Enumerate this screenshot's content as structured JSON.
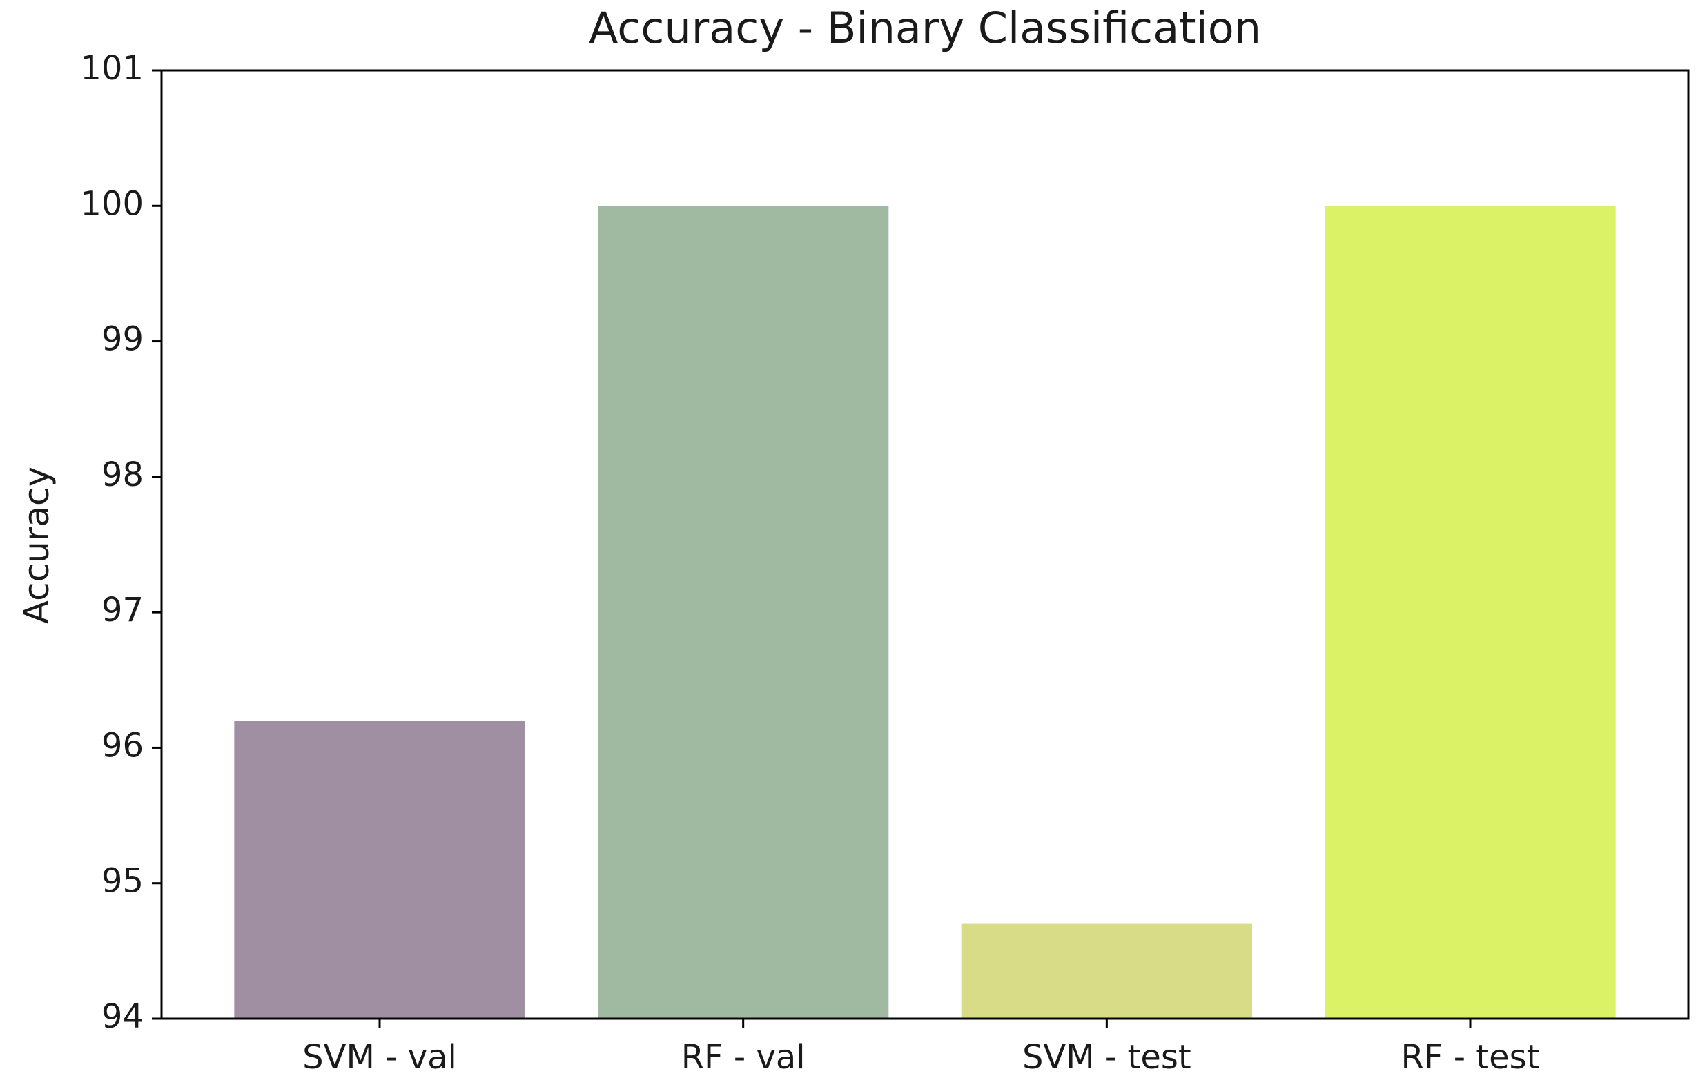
{
  "chart_data": {
    "type": "bar",
    "title": "Accuracy - Binary Classification",
    "xlabel": "",
    "ylabel": "Accuracy",
    "categories": [
      "SVM - val",
      "RF - val",
      "SVM - test",
      "RF - test"
    ],
    "values": [
      96.2,
      100,
      94.7,
      100
    ],
    "colors": [
      "#a08fa2",
      "#a0baa2",
      "#d8dc87",
      "#dcf266"
    ],
    "ylim": [
      94,
      101
    ],
    "yticks": [
      94,
      95,
      96,
      97,
      98,
      99,
      100,
      101
    ],
    "grid": false,
    "legend": "none"
  }
}
